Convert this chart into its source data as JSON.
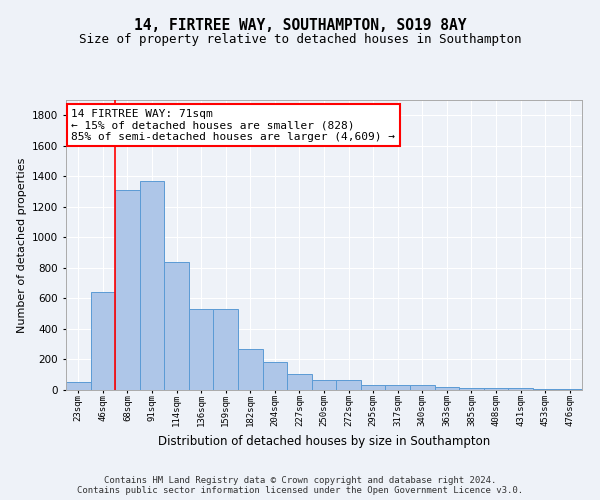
{
  "title": "14, FIRTREE WAY, SOUTHAMPTON, SO19 8AY",
  "subtitle": "Size of property relative to detached houses in Southampton",
  "xlabel": "Distribution of detached houses by size in Southampton",
  "ylabel": "Number of detached properties",
  "categories": [
    "23sqm",
    "46sqm",
    "68sqm",
    "91sqm",
    "114sqm",
    "136sqm",
    "159sqm",
    "182sqm",
    "204sqm",
    "227sqm",
    "250sqm",
    "272sqm",
    "295sqm",
    "317sqm",
    "340sqm",
    "363sqm",
    "385sqm",
    "408sqm",
    "431sqm",
    "453sqm",
    "476sqm"
  ],
  "values": [
    50,
    640,
    1310,
    1370,
    840,
    530,
    530,
    270,
    185,
    105,
    65,
    65,
    35,
    30,
    30,
    20,
    15,
    10,
    10,
    8,
    8
  ],
  "bar_color": "#aec6e8",
  "bar_edge_color": "#5b9bd5",
  "annotation_text": "14 FIRTREE WAY: 71sqm\n← 15% of detached houses are smaller (828)\n85% of semi-detached houses are larger (4,609) →",
  "annotation_box_color": "white",
  "annotation_box_edge_color": "red",
  "vline_color": "red",
  "vline_x": 1.5,
  "ylim": [
    0,
    1900
  ],
  "yticks": [
    0,
    200,
    400,
    600,
    800,
    1000,
    1200,
    1400,
    1600,
    1800
  ],
  "background_color": "#eef2f8",
  "footer_text": "Contains HM Land Registry data © Crown copyright and database right 2024.\nContains public sector information licensed under the Open Government Licence v3.0.",
  "title_fontsize": 10.5,
  "subtitle_fontsize": 9,
  "annotation_fontsize": 8,
  "footer_fontsize": 6.5,
  "ylabel_fontsize": 8,
  "xlabel_fontsize": 8.5
}
